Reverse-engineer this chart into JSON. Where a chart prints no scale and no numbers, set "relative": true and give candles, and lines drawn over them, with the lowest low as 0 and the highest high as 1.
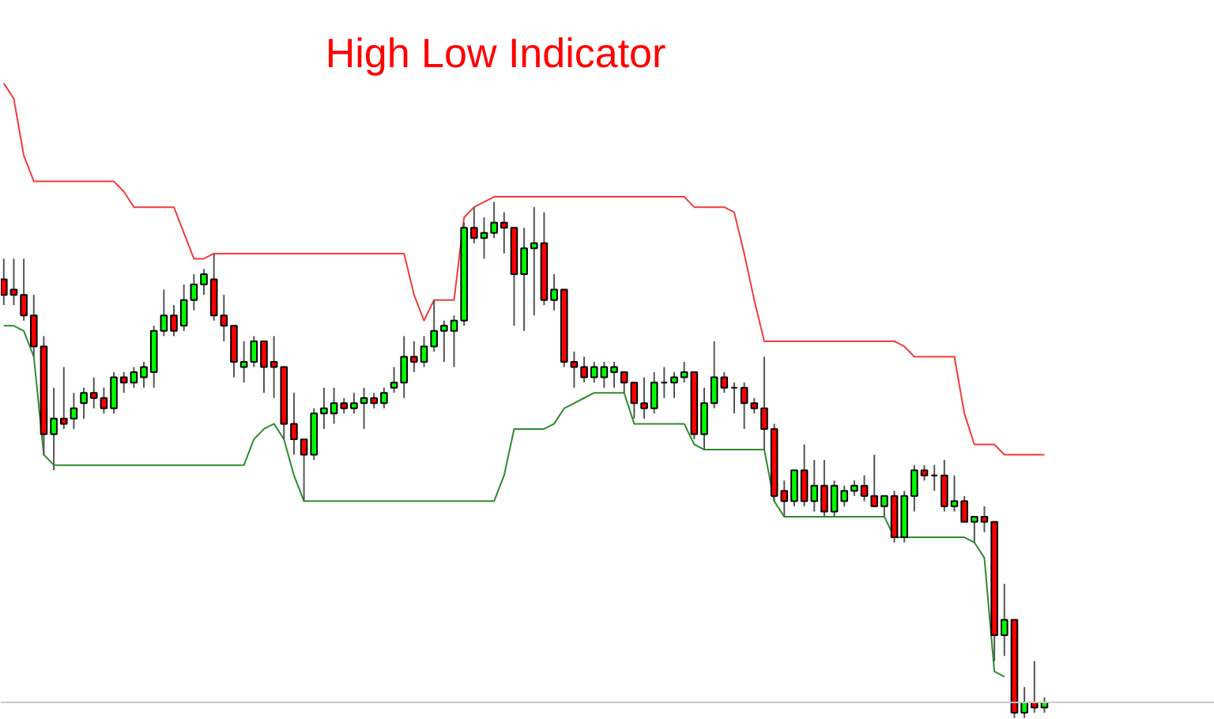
{
  "chart_data": {
    "type": "candlestick",
    "title": "High Low Indicator",
    "relative": true,
    "tick_labels": false,
    "categories": [
      null,
      null,
      null,
      null,
      null,
      null,
      null,
      null,
      null,
      null,
      null,
      null,
      null,
      null,
      null,
      null,
      null,
      null,
      null,
      null,
      null,
      null,
      null,
      null,
      null,
      null,
      null,
      null,
      null,
      null,
      null,
      null,
      null,
      null,
      null,
      null,
      null,
      null,
      null,
      null,
      null,
      null,
      null,
      null,
      null,
      null,
      null,
      null,
      null,
      null,
      null,
      null,
      null,
      null,
      null,
      null,
      null,
      null,
      null,
      null,
      null,
      null,
      null,
      null,
      null,
      null,
      null,
      null,
      null,
      null,
      null,
      null,
      null,
      null,
      null,
      null,
      null,
      null,
      null,
      null,
      null,
      null,
      null,
      null,
      null,
      null,
      null,
      null,
      null,
      null,
      null,
      null,
      null,
      null,
      null,
      null,
      null,
      null,
      null,
      null,
      null,
      null,
      null,
      null,
      null
    ],
    "ohlc": [
      [
        0.85,
        0.89,
        0.8,
        0.82
      ],
      [
        0.83,
        0.89,
        0.8,
        0.82
      ],
      [
        0.82,
        0.89,
        0.77,
        0.78
      ],
      [
        0.78,
        0.82,
        0.7,
        0.72
      ],
      [
        0.72,
        0.74,
        0.51,
        0.55
      ],
      [
        0.55,
        0.64,
        0.48,
        0.58
      ],
      [
        0.58,
        0.68,
        0.56,
        0.57
      ],
      [
        0.58,
        0.63,
        0.56,
        0.6
      ],
      [
        0.61,
        0.64,
        0.58,
        0.63
      ],
      [
        0.63,
        0.66,
        0.6,
        0.62
      ],
      [
        0.62,
        0.64,
        0.59,
        0.6
      ],
      [
        0.6,
        0.67,
        0.59,
        0.66
      ],
      [
        0.66,
        0.67,
        0.63,
        0.65
      ],
      [
        0.65,
        0.68,
        0.64,
        0.67
      ],
      [
        0.66,
        0.69,
        0.64,
        0.68
      ],
      [
        0.67,
        0.76,
        0.64,
        0.75
      ],
      [
        0.75,
        0.83,
        0.74,
        0.78
      ],
      [
        0.78,
        0.8,
        0.74,
        0.75
      ],
      [
        0.76,
        0.84,
        0.75,
        0.81
      ],
      [
        0.81,
        0.86,
        0.79,
        0.84
      ],
      [
        0.84,
        0.87,
        0.82,
        0.86
      ],
      [
        0.85,
        0.9,
        0.77,
        0.78
      ],
      [
        0.78,
        0.82,
        0.73,
        0.76
      ],
      [
        0.76,
        0.76,
        0.66,
        0.69
      ],
      [
        0.68,
        0.73,
        0.65,
        0.69
      ],
      [
        0.69,
        0.74,
        0.68,
        0.73
      ],
      [
        0.73,
        0.73,
        0.63,
        0.68
      ],
      [
        0.69,
        0.74,
        0.62,
        0.68
      ],
      [
        0.68,
        0.68,
        0.54,
        0.57
      ],
      [
        0.57,
        0.63,
        0.51,
        0.54
      ],
      [
        0.54,
        0.54,
        0.42,
        0.51
      ],
      [
        0.51,
        0.6,
        0.5,
        0.59
      ],
      [
        0.59,
        0.64,
        0.56,
        0.6
      ],
      [
        0.59,
        0.64,
        0.57,
        0.61
      ],
      [
        0.61,
        0.62,
        0.59,
        0.6
      ],
      [
        0.6,
        0.63,
        0.59,
        0.61
      ],
      [
        0.61,
        0.64,
        0.56,
        0.62
      ],
      [
        0.62,
        0.63,
        0.6,
        0.61
      ],
      [
        0.61,
        0.64,
        0.6,
        0.63
      ],
      [
        0.64,
        0.68,
        0.63,
        0.65
      ],
      [
        0.65,
        0.74,
        0.62,
        0.7
      ],
      [
        0.7,
        0.73,
        0.67,
        0.69
      ],
      [
        0.69,
        0.74,
        0.68,
        0.72
      ],
      [
        0.72,
        0.81,
        0.71,
        0.75
      ],
      [
        0.75,
        0.77,
        0.69,
        0.76
      ],
      [
        0.75,
        0.78,
        0.68,
        0.77
      ],
      [
        0.77,
        0.96,
        0.76,
        0.95
      ],
      [
        0.95,
        0.99,
        0.92,
        0.93
      ],
      [
        0.93,
        0.97,
        0.89,
        0.94
      ],
      [
        0.94,
        1.0,
        0.93,
        0.96
      ],
      [
        0.96,
        0.98,
        0.9,
        0.95
      ],
      [
        0.95,
        0.95,
        0.76,
        0.86
      ],
      [
        0.86,
        0.95,
        0.75,
        0.91
      ],
      [
        0.91,
        0.99,
        0.78,
        0.92
      ],
      [
        0.92,
        0.98,
        0.8,
        0.81
      ],
      [
        0.81,
        0.86,
        0.79,
        0.83
      ],
      [
        0.83,
        0.83,
        0.68,
        0.69
      ],
      [
        0.69,
        0.71,
        0.64,
        0.68
      ],
      [
        0.68,
        0.7,
        0.65,
        0.66
      ],
      [
        0.66,
        0.69,
        0.65,
        0.68
      ],
      [
        0.66,
        0.69,
        0.64,
        0.68
      ],
      [
        0.67,
        0.69,
        0.64,
        0.68
      ],
      [
        0.67,
        0.67,
        0.63,
        0.65
      ],
      [
        0.65,
        0.65,
        0.58,
        0.61
      ],
      [
        0.61,
        0.66,
        0.58,
        0.6
      ],
      [
        0.6,
        0.67,
        0.59,
        0.65
      ],
      [
        0.65,
        0.68,
        0.62,
        0.65
      ],
      [
        0.65,
        0.67,
        0.62,
        0.66
      ],
      [
        0.66,
        0.69,
        0.65,
        0.67
      ],
      [
        0.67,
        0.67,
        0.54,
        0.55
      ],
      [
        0.55,
        0.64,
        0.52,
        0.61
      ],
      [
        0.61,
        0.73,
        0.6,
        0.66
      ],
      [
        0.66,
        0.67,
        0.63,
        0.64
      ],
      [
        0.64,
        0.65,
        0.59,
        0.64
      ],
      [
        0.64,
        0.65,
        0.56,
        0.61
      ],
      [
        0.61,
        0.62,
        0.59,
        0.6
      ],
      [
        0.6,
        0.7,
        0.52,
        0.56
      ],
      [
        0.56,
        0.57,
        0.42,
        0.43
      ],
      [
        0.44,
        0.46,
        0.39,
        0.42
      ],
      [
        0.42,
        0.48,
        0.41,
        0.48
      ],
      [
        0.48,
        0.53,
        0.41,
        0.42
      ],
      [
        0.42,
        0.5,
        0.4,
        0.45
      ],
      [
        0.45,
        0.5,
        0.39,
        0.4
      ],
      [
        0.4,
        0.46,
        0.39,
        0.45
      ],
      [
        0.42,
        0.45,
        0.41,
        0.44
      ],
      [
        0.44,
        0.46,
        0.43,
        0.45
      ],
      [
        0.45,
        0.47,
        0.42,
        0.43
      ],
      [
        0.43,
        0.51,
        0.41,
        0.41
      ],
      [
        0.41,
        0.43,
        0.39,
        0.43
      ],
      [
        0.43,
        0.44,
        0.34,
        0.35
      ],
      [
        0.35,
        0.44,
        0.34,
        0.43
      ],
      [
        0.43,
        0.49,
        0.4,
        0.48
      ],
      [
        0.48,
        0.49,
        0.46,
        0.47
      ],
      [
        0.47,
        0.49,
        0.44,
        0.47
      ],
      [
        0.47,
        0.5,
        0.4,
        0.41
      ],
      [
        0.41,
        0.47,
        0.4,
        0.42
      ],
      [
        0.42,
        0.43,
        0.38,
        0.38
      ],
      [
        0.38,
        0.39,
        0.34,
        0.39
      ],
      [
        0.39,
        0.41,
        0.36,
        0.38
      ],
      [
        0.38,
        0.38,
        0.11,
        0.16
      ],
      [
        0.16,
        0.26,
        0.12,
        0.19
      ],
      [
        0.19,
        0.19,
        0.0,
        0.01
      ],
      [
        0.01,
        0.06,
        0.0,
        0.03
      ],
      [
        0.03,
        0.11,
        0.01,
        0.02
      ],
      [
        0.02,
        0.04,
        0.01,
        0.03
      ]
    ],
    "colors": [
      "#ff0000",
      "#ff0000",
      "#ff0000",
      "#ff0000",
      "#ff0000",
      "#00ff00",
      "#ff0000",
      "#00ff00",
      "#00ff00",
      "#ff0000",
      "#ff0000",
      "#00ff00",
      "#ff0000",
      "#00ff00",
      "#00ff00",
      "#00ff00",
      "#00ff00",
      "#ff0000",
      "#00ff00",
      "#00ff00",
      "#00ff00",
      "#ff0000",
      "#ff0000",
      "#ff0000",
      "#00ff00",
      "#00ff00",
      "#ff0000",
      "#ff0000",
      "#ff0000",
      "#ff0000",
      "#ff0000",
      "#00ff00",
      "#00ff00",
      "#00ff00",
      "#ff0000",
      "#00ff00",
      "#00ff00",
      "#ff0000",
      "#00ff00",
      "#00ff00",
      "#00ff00",
      "#ff0000",
      "#00ff00",
      "#00ff00",
      "#00ff00",
      "#00ff00",
      "#00ff00",
      "#ff0000",
      "#00ff00",
      "#00ff00",
      "#ff0000",
      "#ff0000",
      "#00ff00",
      "#00ff00",
      "#ff0000",
      "#00ff00",
      "#ff0000",
      "#ff0000",
      "#ff0000",
      "#00ff00",
      "#00ff00",
      "#00ff00",
      "#ff0000",
      "#ff0000",
      "#ff0000",
      "#00ff00",
      "#000000",
      "#00ff00",
      "#00ff00",
      "#ff0000",
      "#00ff00",
      "#00ff00",
      "#ff0000",
      "#000000",
      "#ff0000",
      "#ff0000",
      "#ff0000",
      "#ff0000",
      "#ff0000",
      "#00ff00",
      "#ff0000",
      "#00ff00",
      "#ff0000",
      "#00ff00",
      "#00ff00",
      "#00ff00",
      "#ff0000",
      "#ff0000",
      "#00ff00",
      "#ff0000",
      "#00ff00",
      "#00ff00",
      "#ff0000",
      "#000000",
      "#ff0000",
      "#00ff00",
      "#ff0000",
      "#00ff00",
      "#ff0000",
      "#ff0000",
      "#00ff00",
      "#ff0000",
      "#00ff00",
      "#ff0000",
      "#00ff00"
    ],
    "series": [
      {
        "type": "line",
        "color": "#f03c3c",
        "values": [
          1.23,
          1.2,
          1.09,
          1.04,
          1.04,
          1.04,
          1.04,
          1.04,
          1.04,
          1.04,
          1.04,
          1.04,
          1.02,
          0.99,
          0.99,
          0.99,
          0.99,
          0.99,
          0.94,
          0.89,
          0.89,
          0.9,
          0.9,
          0.9,
          0.9,
          0.9,
          0.9,
          0.9,
          0.9,
          0.9,
          0.9,
          0.9,
          0.9,
          0.9,
          0.9,
          0.9,
          0.9,
          0.9,
          0.9,
          0.9,
          0.9,
          0.82,
          0.77,
          0.81,
          0.81,
          0.81,
          0.97,
          0.99,
          1.0,
          1.01,
          1.01,
          1.01,
          1.01,
          1.01,
          1.01,
          1.01,
          1.01,
          1.01,
          1.01,
          1.01,
          1.01,
          1.01,
          1.01,
          1.01,
          1.01,
          1.01,
          1.01,
          1.01,
          1.01,
          0.99,
          0.99,
          0.99,
          0.99,
          0.98,
          0.9,
          0.81,
          0.73,
          0.73,
          0.73,
          0.73,
          0.73,
          0.73,
          0.73,
          0.73,
          0.73,
          0.73,
          0.73,
          0.73,
          0.73,
          0.73,
          0.72,
          0.7,
          0.7,
          0.7,
          0.7,
          0.7,
          0.59,
          0.53,
          0.53,
          0.53,
          0.51,
          0.51,
          0.51,
          0.51,
          0.51
        ]
      },
      {
        "type": "line",
        "color": "#2e8b2e",
        "values": [
          0.76,
          0.76,
          0.75,
          0.7,
          0.51,
          0.49,
          0.49,
          0.49,
          0.49,
          0.49,
          0.49,
          0.49,
          0.49,
          0.49,
          0.49,
          0.49,
          0.49,
          0.49,
          0.49,
          0.49,
          0.49,
          0.49,
          0.49,
          0.49,
          0.49,
          0.54,
          0.56,
          0.57,
          0.54,
          0.47,
          0.42,
          0.42,
          0.42,
          0.42,
          0.42,
          0.42,
          0.42,
          0.42,
          0.42,
          0.42,
          0.42,
          0.42,
          0.42,
          0.42,
          0.42,
          0.42,
          0.42,
          0.42,
          0.42,
          0.42,
          0.47,
          0.56,
          0.56,
          0.56,
          0.56,
          0.57,
          0.6,
          0.61,
          0.62,
          0.63,
          0.63,
          0.63,
          0.63,
          0.57,
          0.57,
          0.57,
          0.57,
          0.57,
          0.57,
          0.53,
          0.52,
          0.52,
          0.52,
          0.52,
          0.52,
          0.52,
          0.52,
          0.42,
          0.39,
          0.39,
          0.39,
          0.39,
          0.39,
          0.39,
          0.39,
          0.39,
          0.39,
          0.39,
          0.39,
          0.35,
          0.35,
          0.35,
          0.35,
          0.35,
          0.35,
          0.35,
          0.35,
          0.34,
          0.31,
          0.09,
          0.08,
          null,
          null,
          null,
          null
        ]
      }
    ],
    "ref_lines": [
      {
        "axis": "y",
        "value": 0.03,
        "color": "#c8c8c8"
      }
    ]
  }
}
